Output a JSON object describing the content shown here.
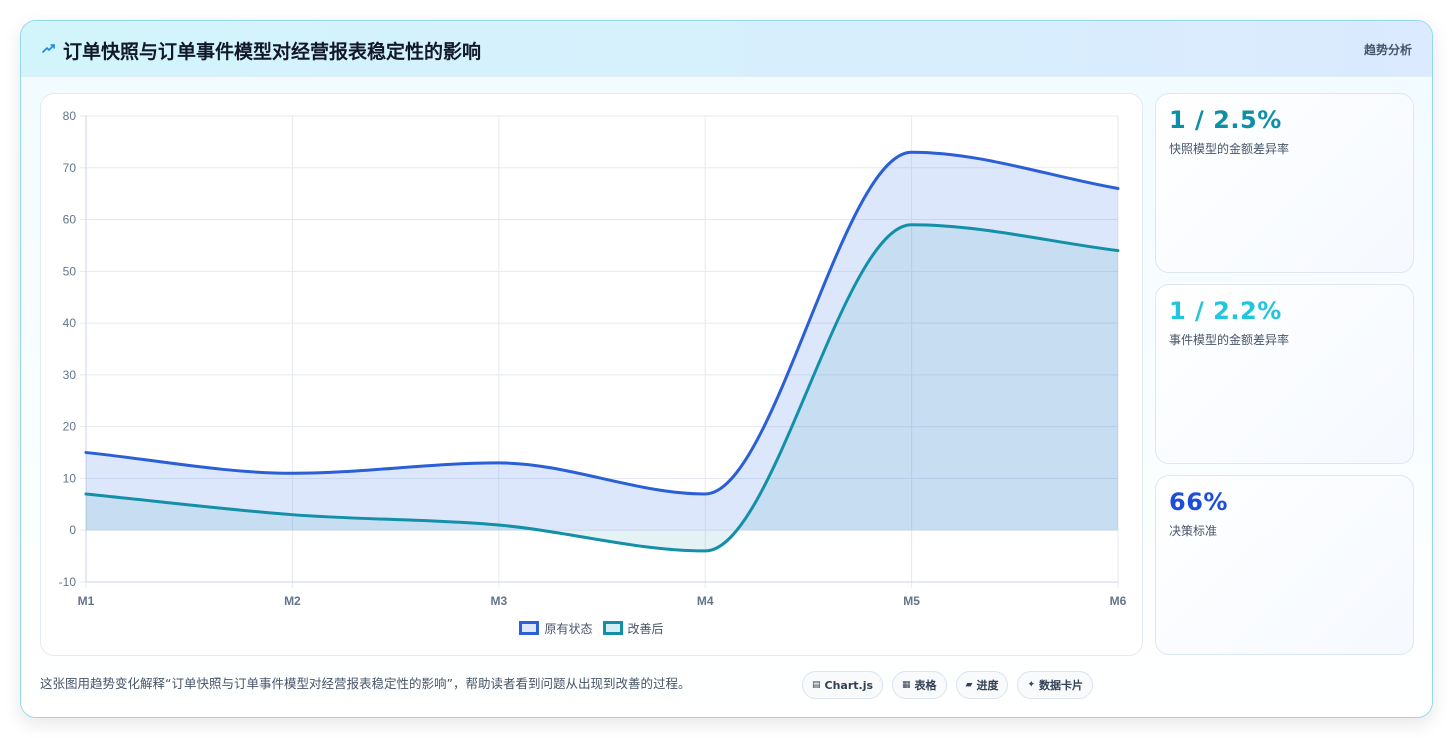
{
  "header": {
    "title": "订单快照与订单事件模型对经营报表稳定性的影响",
    "tag": "趋势分析"
  },
  "colors": {
    "series_original": "#2a5fd6",
    "series_improved": "#1390a8",
    "accent_teal": "#0e8fa5",
    "accent_cyan": "#22c5de",
    "accent_blue": "#1d4ed8"
  },
  "chart_data": {
    "type": "line",
    "categories": [
      "M1",
      "M2",
      "M3",
      "M4",
      "M5",
      "M6"
    ],
    "series": [
      {
        "name": "原有状态",
        "values": [
          15,
          11,
          13,
          7,
          73,
          66
        ],
        "fill": true
      },
      {
        "name": "改善后",
        "values": [
          7,
          3,
          1,
          -4,
          59,
          54
        ],
        "fill": true
      }
    ],
    "ylim": [
      -10,
      80
    ],
    "yticks": [
      -10,
      0,
      10,
      20,
      30,
      40,
      50,
      60,
      70,
      80
    ],
    "grid": true,
    "legend": "bottom",
    "curve": "smooth"
  },
  "stats": [
    {
      "value": "1 / 2.5%",
      "label": "快照模型的金额差异率",
      "color": "#0e8fa5"
    },
    {
      "value": "1 / 2.2%",
      "label": "事件模型的金额差异率",
      "color": "#22c5de"
    },
    {
      "value": "66%",
      "label": "决策标准",
      "color": "#1d4ed8"
    }
  ],
  "footer": {
    "description": "这张图用趋势变化解释“订单快照与订单事件模型对经营报表稳定性的影响”，帮助读者看到问题从出现到改善的过程。",
    "chips": [
      {
        "icon": "▤",
        "label": "Chart.js"
      },
      {
        "icon": "▦",
        "label": "表格"
      },
      {
        "icon": "▰",
        "label": "进度"
      },
      {
        "icon": "✦",
        "label": "数据卡片"
      }
    ]
  }
}
